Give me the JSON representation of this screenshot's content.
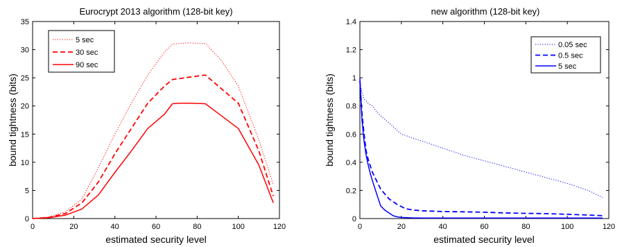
{
  "chart_data": [
    {
      "type": "line",
      "title": "Eurocrypt 2013 algorithm (128-bit key)",
      "xlabel": "estimated security level",
      "ylabel": "bound tightness (bits)",
      "xlim": [
        0,
        120
      ],
      "ylim": [
        0,
        35
      ],
      "xticks": [
        0,
        20,
        40,
        60,
        80,
        100,
        120
      ],
      "yticks": [
        0,
        5,
        10,
        15,
        20,
        25,
        30,
        35
      ],
      "grid": false,
      "legend_position": "top-left",
      "color": "#ff0000",
      "series": [
        {
          "name": "5 sec",
          "style": "dotted",
          "x": [
            0,
            8,
            16,
            24,
            32,
            40,
            48,
            56,
            64,
            68,
            72,
            76,
            84,
            92,
            100,
            110,
            117
          ],
          "y": [
            0,
            0.3,
            1.2,
            3.5,
            9,
            15,
            20.5,
            25.5,
            29.5,
            31,
            31.1,
            31.2,
            31.1,
            28,
            23.5,
            14,
            6
          ]
        },
        {
          "name": "30 sec",
          "style": "dashed",
          "x": [
            0,
            8,
            16,
            24,
            32,
            40,
            48,
            56,
            64,
            68,
            72,
            76,
            84,
            92,
            100,
            110,
            117
          ],
          "y": [
            0,
            0.2,
            0.9,
            2.8,
            6.5,
            11.5,
            16,
            20.5,
            23.5,
            24.7,
            24.9,
            25.1,
            25.5,
            23,
            20.5,
            12,
            4
          ]
        },
        {
          "name": "90 sec",
          "style": "solid",
          "x": [
            0,
            8,
            16,
            24,
            32,
            40,
            48,
            56,
            64,
            68,
            72,
            76,
            84,
            92,
            100,
            110,
            117
          ],
          "y": [
            0,
            0.15,
            0.6,
            1.7,
            4.2,
            8.2,
            12,
            16,
            18.5,
            20.4,
            20.5,
            20.5,
            20.4,
            18.2,
            16,
            9.5,
            2.8
          ]
        }
      ]
    },
    {
      "type": "line",
      "title": "new algorithm (128-bit key)",
      "xlabel": "estimated security level",
      "ylabel": "bound tightness (bits)",
      "xlim": [
        0,
        120
      ],
      "ylim": [
        0,
        1.4
      ],
      "xticks": [
        0,
        20,
        40,
        60,
        80,
        100,
        120
      ],
      "yticks": [
        0,
        0.2,
        0.4,
        0.6,
        0.8,
        1,
        1.2,
        1.4
      ],
      "grid": false,
      "legend_position": "top-right",
      "color": "#0000ff",
      "series": [
        {
          "name": "0.05 sec",
          "style": "dotted",
          "x": [
            0,
            1,
            2,
            4,
            6,
            8,
            10,
            14,
            20,
            30,
            40,
            50,
            60,
            70,
            80,
            90,
            100,
            110,
            117
          ],
          "y": [
            0.96,
            0.9,
            0.85,
            0.82,
            0.8,
            0.76,
            0.73,
            0.68,
            0.6,
            0.55,
            0.5,
            0.45,
            0.41,
            0.37,
            0.33,
            0.29,
            0.25,
            0.2,
            0.15
          ]
        },
        {
          "name": "0.5 sec",
          "style": "dashed",
          "x": [
            0,
            1,
            2,
            3,
            4,
            6,
            8,
            10,
            14,
            18,
            22,
            26,
            30,
            40,
            50,
            60,
            70,
            80,
            90,
            100,
            110,
            117
          ],
          "y": [
            0.98,
            0.75,
            0.6,
            0.48,
            0.42,
            0.33,
            0.27,
            0.21,
            0.14,
            0.1,
            0.07,
            0.06,
            0.055,
            0.05,
            0.048,
            0.045,
            0.04,
            0.037,
            0.035,
            0.03,
            0.025,
            0.02
          ]
        },
        {
          "name": "5 sec",
          "style": "solid",
          "x": [
            0,
            1,
            2,
            3,
            4,
            5,
            6,
            8,
            10,
            12,
            14,
            16,
            18,
            20,
            25,
            30,
            40,
            60,
            80,
            100,
            117
          ],
          "y": [
            1.0,
            0.7,
            0.55,
            0.45,
            0.38,
            0.32,
            0.27,
            0.18,
            0.09,
            0.06,
            0.04,
            0.02,
            0.012,
            0.008,
            0.005,
            0.004,
            0.004,
            0.004,
            0.004,
            0.004,
            0.004
          ]
        }
      ]
    }
  ]
}
